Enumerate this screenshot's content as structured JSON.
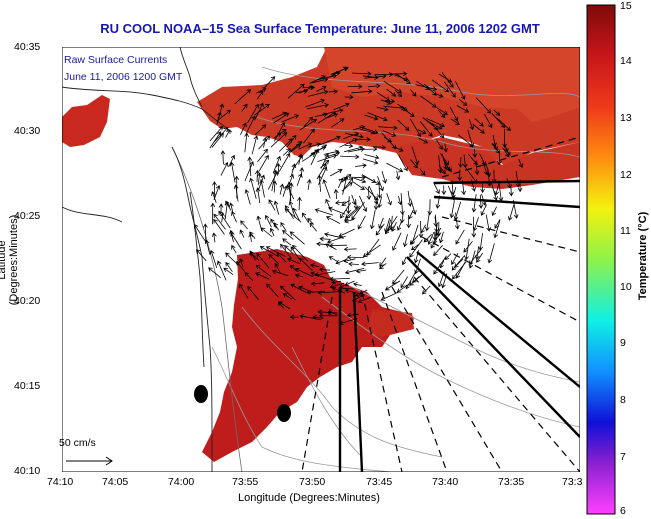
{
  "title": "RU COOL  NOAA–15  Sea Surface Temperature:  June 11, 2006 1202 GMT",
  "overlay": {
    "line1": "Raw Surface Currents",
    "line2": "June 11, 2006 1200 GMT"
  },
  "axes": {
    "xlabel": "Longitude (Degrees:Minutes)",
    "ylabel": "Latitude (Degrees:Minutes)",
    "x_ticks": [
      "74:10",
      "74:05",
      "74:00",
      "73:55",
      "73:50",
      "73:45",
      "73:40",
      "73:35",
      "73:3"
    ],
    "y_ticks": [
      "40:35",
      "40:30",
      "40:25",
      "40:20",
      "40:15",
      "40:10"
    ]
  },
  "colorbar": {
    "label": "Temperature (°C)",
    "ticks": [
      "15",
      "14",
      "13",
      "12",
      "11",
      "10",
      "9",
      "8",
      "7",
      "6"
    ],
    "min": 6,
    "max": 15
  },
  "scale_vector": {
    "label": "50 cm/s"
  },
  "colors": {
    "title": "#1717b8",
    "sst_warm": "#cc2b20",
    "sst_hot": "#b3141a",
    "land": "#ffffff"
  }
}
